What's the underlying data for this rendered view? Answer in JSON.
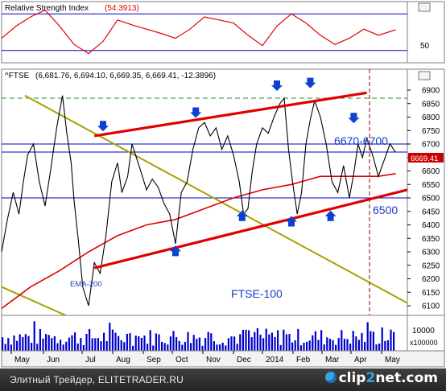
{
  "rsi_panel": {
    "title": "Relative Strength Index",
    "value": "(54.3913)",
    "levels": [
      80,
      20
    ],
    "tick_labels": [
      "50"
    ],
    "window_button": "▫"
  },
  "price_panel": {
    "title": "^FTSE",
    "ohlc": "(6,681.76, 6,694.10, 6,669.35, 6,669.41, -12.3896)",
    "window_button": "▫",
    "last_price_tag": "6669.41"
  },
  "volume_panel": {
    "tick_labels": [
      "10000",
      "x100000"
    ]
  },
  "x_axis_labels": [
    "May",
    "Jun",
    "Jul",
    "Aug",
    "Sep",
    "Oct",
    "Nov",
    "Dec",
    "2014",
    "Feb",
    "Mar",
    "Apr",
    "May"
  ],
  "annotations": {
    "resistance_zone": "6670-6700",
    "support": "6500",
    "ema": "EMA-200",
    "index_name": "FTSE-100"
  },
  "colors": {
    "price": "#000000",
    "rsi": "#e00000",
    "ema": "#e00000",
    "channel": "#e00000",
    "trend": "#a8a000",
    "levels": "#0000cc",
    "arrows": "#1040d0",
    "annotation_text": "#1a3cc8",
    "last_price_tag": "#cc0000",
    "volume": "#0000cc"
  },
  "footer": {
    "caption": "Элитный Трейдер, ELITETRADER.RU",
    "brand_a": "clip",
    "brand_b": "2",
    "brand_c": "net.com"
  },
  "chart_data": {
    "type": "line",
    "title": "^FTSE",
    "period": [
      "2013-05",
      "2014-04"
    ],
    "ylim": [
      6050,
      6950
    ],
    "y_ticks": [
      6100,
      6150,
      6200,
      6250,
      6300,
      6350,
      6400,
      6450,
      6500,
      6550,
      6600,
      6650,
      6700,
      6750,
      6800,
      6850,
      6900
    ],
    "price_series": {
      "name": "^FTSE",
      "x": [
        0,
        4,
        8,
        12,
        15,
        18,
        22,
        26,
        30,
        34,
        38,
        42,
        45,
        48,
        50,
        53,
        56,
        60,
        64,
        68,
        72,
        76,
        80,
        83,
        87,
        90,
        93,
        96,
        100,
        104,
        108,
        112,
        116,
        120,
        124,
        128,
        132,
        136,
        140,
        144,
        148,
        152,
        156,
        160,
        164,
        167,
        170,
        173,
        176,
        180,
        184,
        188,
        192,
        195,
        198,
        201,
        204,
        207,
        210,
        213,
        216,
        220,
        224,
        228,
        232,
        236,
        240,
        243,
        246,
        249,
        252,
        256,
        260,
        264,
        268,
        272
      ],
      "y": [
        6300,
        6420,
        6520,
        6440,
        6560,
        6660,
        6700,
        6560,
        6470,
        6610,
        6760,
        6880,
        6740,
        6630,
        6490,
        6340,
        6170,
        6100,
        6260,
        6220,
        6360,
        6560,
        6630,
        6520,
        6580,
        6700,
        6650,
        6600,
        6530,
        6570,
        6540,
        6480,
        6440,
        6330,
        6520,
        6560,
        6680,
        6760,
        6780,
        6730,
        6760,
        6680,
        6730,
        6660,
        6560,
        6440,
        6460,
        6600,
        6700,
        6760,
        6740,
        6800,
        6850,
        6870,
        6680,
        6550,
        6440,
        6520,
        6700,
        6790,
        6860,
        6800,
        6700,
        6560,
        6520,
        6620,
        6500,
        6590,
        6700,
        6650,
        6720,
        6660,
        6580,
        6640,
        6700,
        6669
      ]
    },
    "ema_200": {
      "name": "EMA-200",
      "x": [
        0,
        20,
        40,
        60,
        80,
        100,
        120,
        140,
        160,
        180,
        200,
        220,
        240,
        260,
        272
      ],
      "y": [
        6090,
        6170,
        6230,
        6300,
        6360,
        6400,
        6420,
        6460,
        6500,
        6530,
        6550,
        6580,
        6580,
        6580,
        6590
      ]
    },
    "channel_upper": {
      "x": [
        64,
        252
      ],
      "y": [
        6730,
        6890
      ]
    },
    "channel_lower": {
      "x": [
        64,
        280
      ],
      "y": [
        6240,
        6530
      ]
    },
    "downtrend_line": {
      "x": [
        16,
        280
      ],
      "y": [
        6880,
        6110
      ]
    },
    "levels": [
      6670,
      6700,
      6500
    ],
    "rsi": {
      "ylim": [
        0,
        100
      ],
      "levels": [
        80,
        20
      ],
      "last": 54.3913,
      "x": [
        0,
        10,
        20,
        30,
        40,
        50,
        60,
        70,
        80,
        90,
        100,
        110,
        120,
        130,
        140,
        150,
        160,
        170,
        180,
        190,
        200,
        210,
        220,
        230,
        240,
        250,
        260,
        272
      ],
      "y": [
        40,
        60,
        75,
        86,
        60,
        30,
        15,
        35,
        70,
        62,
        55,
        48,
        40,
        55,
        75,
        70,
        65,
        45,
        28,
        60,
        80,
        65,
        45,
        30,
        40,
        55,
        45,
        54
      ]
    },
    "volume_note": "x100000"
  }
}
